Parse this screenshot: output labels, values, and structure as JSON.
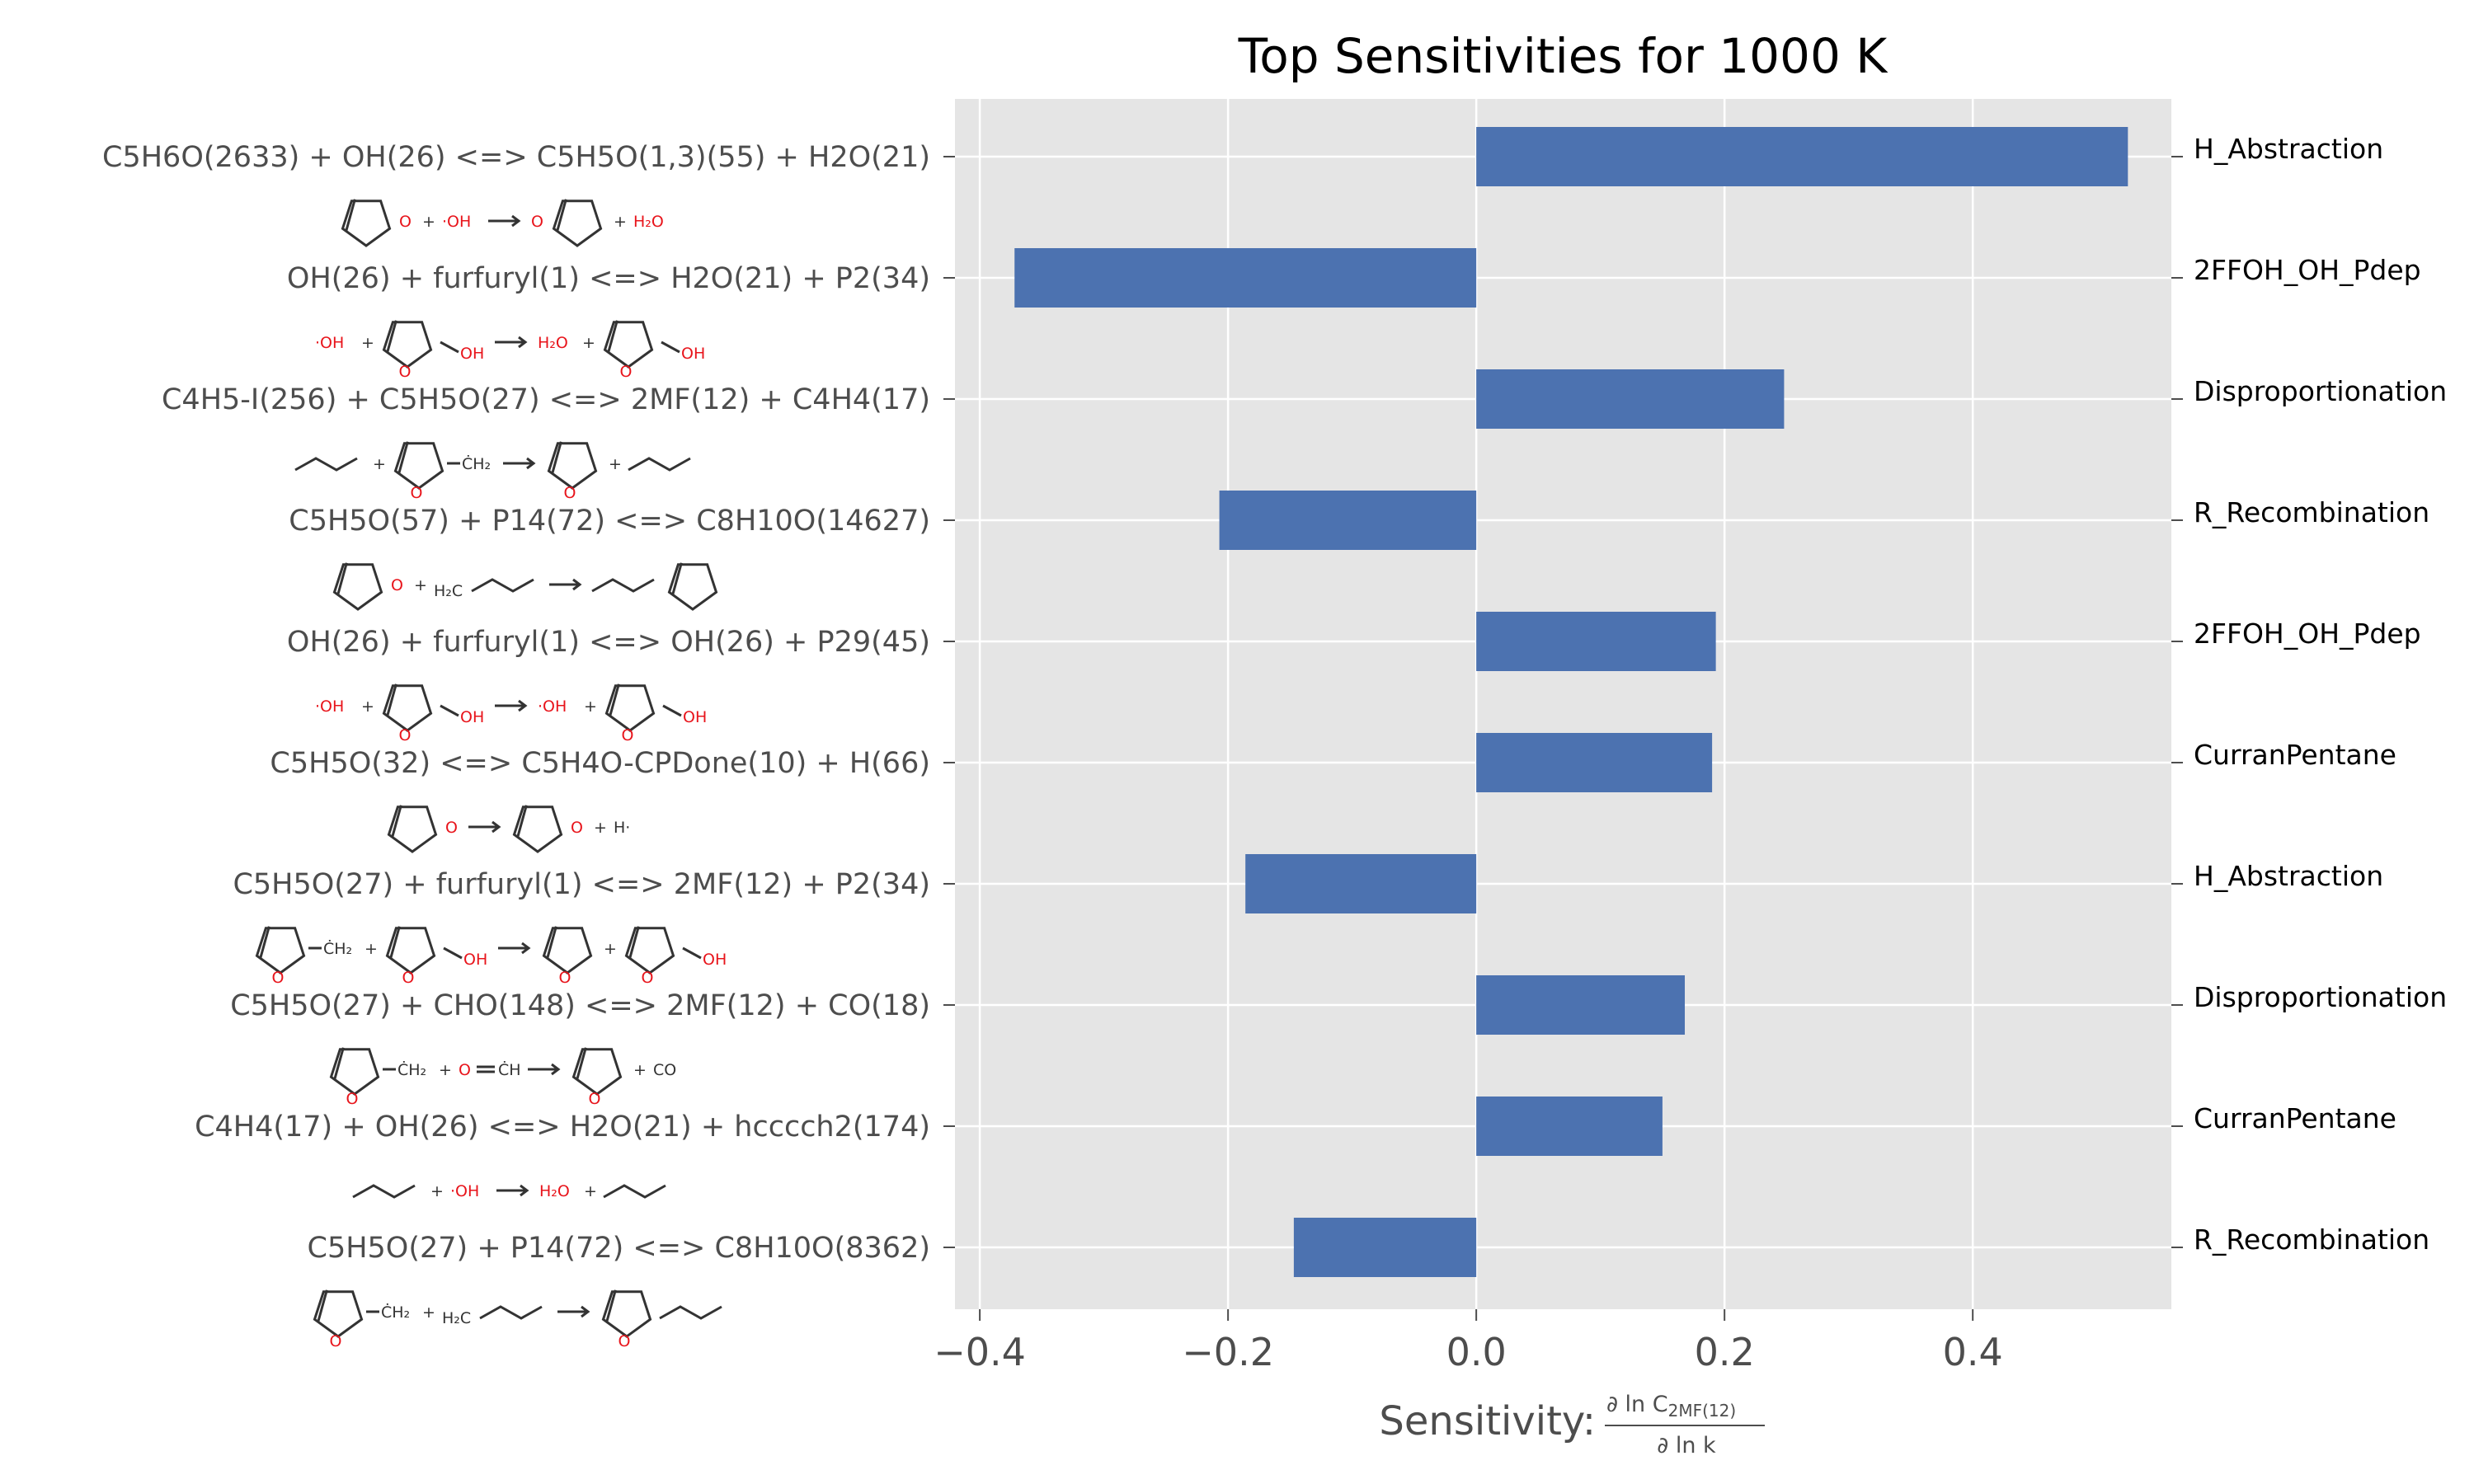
{
  "chart_data": {
    "type": "bar",
    "orientation": "horizontal",
    "title": "Top Sensitivities for 1000 K",
    "xlabel_prefix": "Sensitivity:",
    "xlabel_numerator": "∂ ln C",
    "xlabel_numerator_sub": "2MF(12)",
    "xlabel_denominator": "∂ ln k",
    "xlim": [
      -0.42,
      0.56
    ],
    "xticks": [
      -0.4,
      -0.2,
      0.0,
      0.2,
      0.4
    ],
    "xtick_labels": [
      "−0.4",
      "−0.2",
      "0.0",
      "0.2",
      "0.4"
    ],
    "grid": true,
    "bar_color": "#4c72b0",
    "background_color": "#e5e5e5",
    "categories": [
      "C5H6O(2633) + OH(26) <=> C5H5O(1,3)(55) + H2O(21)",
      "OH(26) + furfuryl(1) <=> H2O(21) + P2(34)",
      "C4H5-I(256) + C5H5O(27) <=> 2MF(12) + C4H4(17)",
      "C5H5O(57) + P14(72) <=> C8H10O(14627)",
      "OH(26) + furfuryl(1) <=> OH(26) + P29(45)",
      "C5H5O(32) <=> C5H4O-CPDone(10) + H(66)",
      "C5H5O(27) + furfuryl(1) <=> 2MF(12) + P2(34)",
      "C5H5O(27) + CHO(148) <=> 2MF(12) + CO(18)",
      "C4H4(17) + OH(26) <=> H2O(21) + hcccch2(174)",
      "C5H5O(27) + P14(72) <=> C8H10O(8362)"
    ],
    "values": [
      0.525,
      -0.372,
      0.248,
      -0.207,
      0.193,
      0.19,
      -0.186,
      0.168,
      0.15,
      -0.147
    ],
    "families": [
      "H_Abstraction",
      "2FFOH_OH_Pdep",
      "Disproportionation",
      "R_Recombination",
      "2FFOH_OH_Pdep",
      "CurranPentane",
      "H_Abstraction",
      "Disproportionation",
      "CurranPentane",
      "R_Recombination"
    ]
  },
  "structure_labels": {
    "oh": "·OH",
    "h2o": "H₂O",
    "ch2": "ĊH₂",
    "h2c": "H₂C",
    "h": "H·",
    "co": "CO",
    "ch": "ĊH",
    "o": "O",
    "plus": "+",
    "arrow": "→"
  }
}
